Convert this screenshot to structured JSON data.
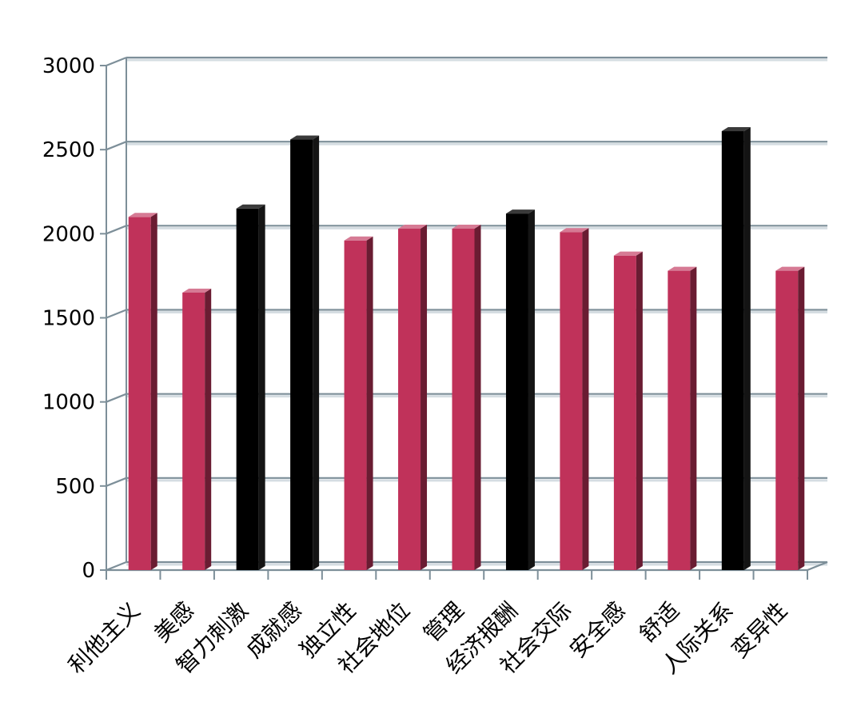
{
  "chart_data": {
    "type": "bar",
    "title": "",
    "xlabel": "",
    "ylabel": "",
    "ylim": [
      0,
      3000
    ],
    "yticks": [
      0,
      500,
      1000,
      1500,
      2000,
      2500,
      3000
    ],
    "grid": true,
    "three_d": true,
    "categories": [
      "利他主义",
      "美感",
      "智力刺激",
      "成就感",
      "独立性",
      "社会地位",
      "管理",
      "经济报酬",
      "社会交际",
      "安全感",
      "舒适",
      "人际关系",
      "变异性"
    ],
    "values": [
      2100,
      1650,
      2150,
      2560,
      1960,
      2030,
      2030,
      2120,
      2010,
      1870,
      1780,
      2610,
      1780
    ],
    "highlighted": [
      false,
      false,
      true,
      true,
      false,
      false,
      false,
      true,
      false,
      false,
      false,
      true,
      false
    ],
    "colors": {
      "normal": "#c0325a",
      "highlighted": "#000000"
    }
  }
}
